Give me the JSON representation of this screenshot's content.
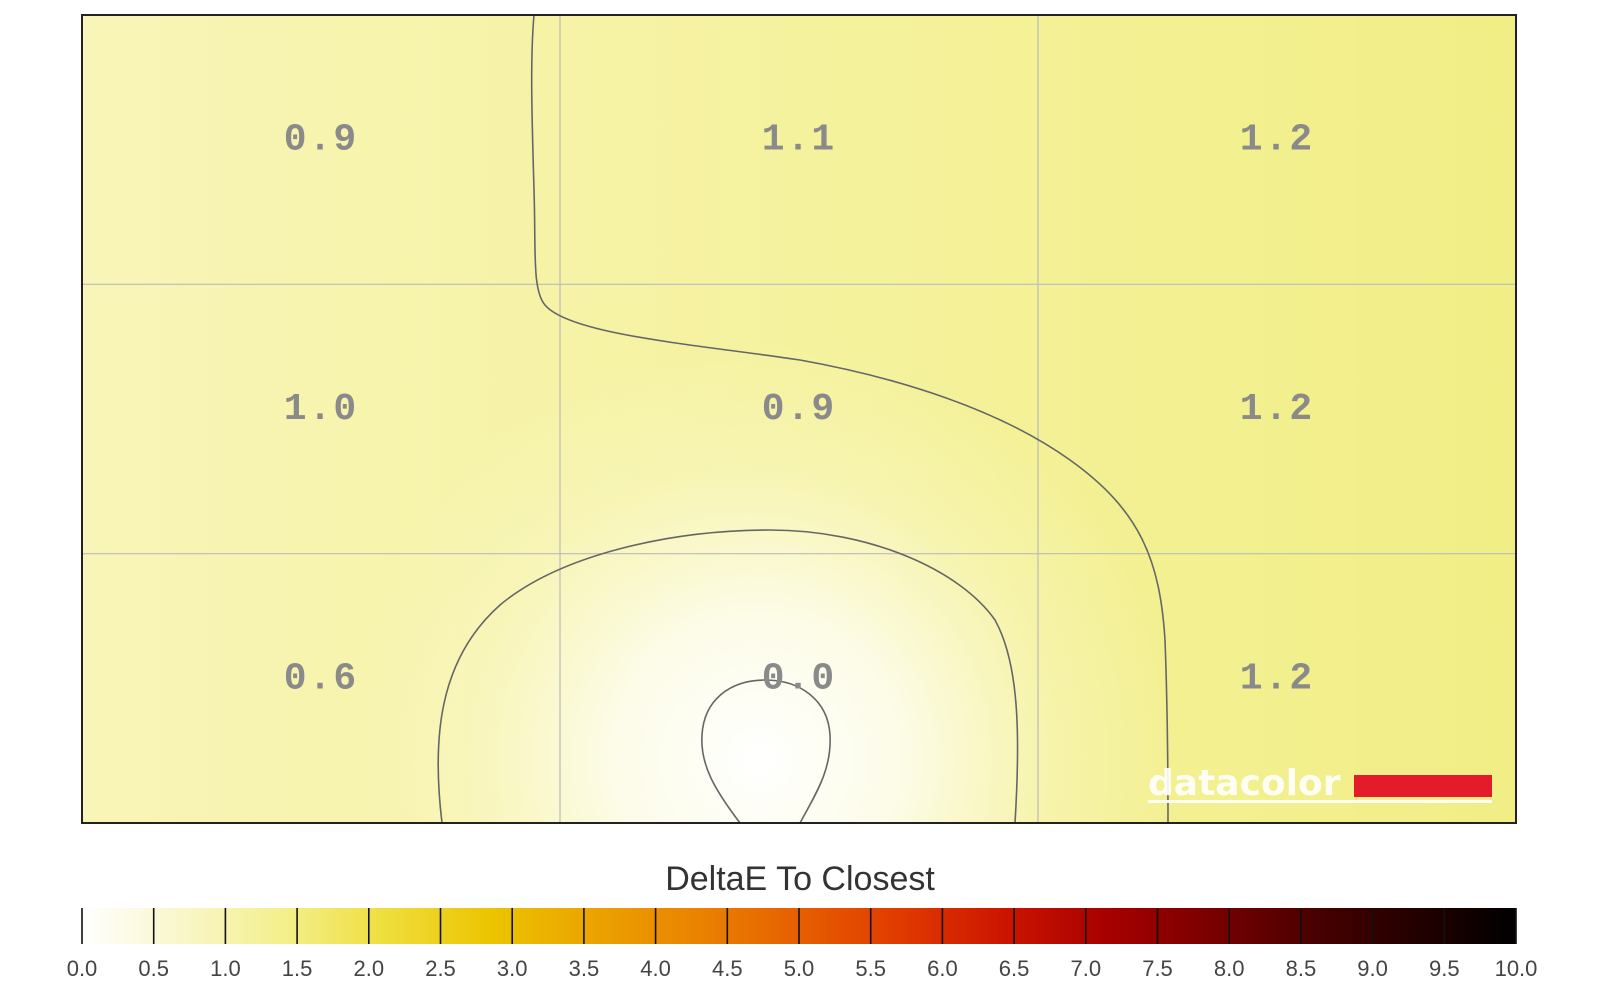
{
  "chart_data": {
    "type": "heatmap",
    "title": "",
    "grid_rows": 3,
    "grid_cols": 3,
    "values": [
      [
        0.9,
        1.1,
        1.2
      ],
      [
        1.0,
        0.9,
        1.2
      ],
      [
        0.6,
        0.0,
        1.2
      ]
    ],
    "labels": [
      [
        "0.9",
        "1.1",
        "1.2"
      ],
      [
        "1.0",
        "0.9",
        "1.2"
      ],
      [
        "0.6",
        "0.0",
        "1.2"
      ]
    ],
    "contour_levels": [
      0.5,
      1.0
    ],
    "grid": true,
    "colorbar": {
      "title": "DeltaE To Closest",
      "range": [
        0,
        10
      ],
      "tick_labels": [
        "0.0",
        "0.5",
        "1.0",
        "1.5",
        "2.0",
        "2.5",
        "3.0",
        "3.5",
        "4.0",
        "4.5",
        "5.0",
        "5.5",
        "6.0",
        "6.5",
        "7.0",
        "7.5",
        "8.0",
        "8.5",
        "9.0",
        "9.5",
        "10.0"
      ],
      "colors": [
        "#ffffff",
        "#f9f6c8",
        "#f3ef8a",
        "#eedd3a",
        "#ecc400",
        "#eba300",
        "#ea8300",
        "#e65f00",
        "#e03a00",
        "#cc1500",
        "#a80000",
        "#7a0000",
        "#4a0000",
        "#240000",
        "#000000"
      ]
    },
    "watermark": "datacolor",
    "watermark_color": "#e31b2b"
  }
}
